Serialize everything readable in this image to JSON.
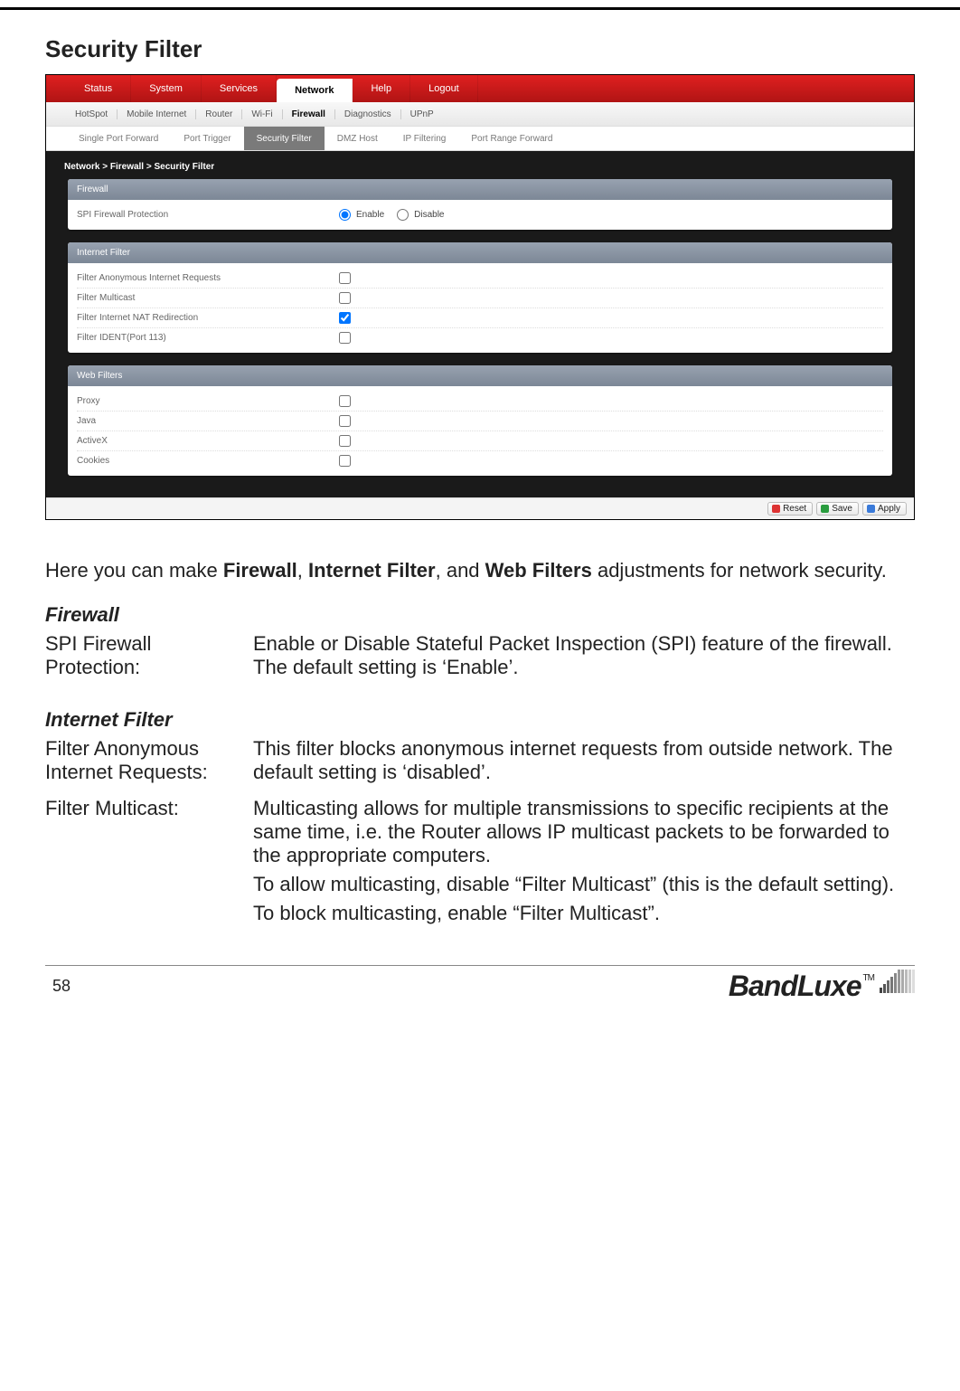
{
  "page": {
    "title": "Security Filter",
    "number": "58"
  },
  "screenshot": {
    "topnav": [
      {
        "label": "Status",
        "active": false
      },
      {
        "label": "System",
        "active": false
      },
      {
        "label": "Services",
        "active": false
      },
      {
        "label": "Network",
        "active": true
      },
      {
        "label": "Help",
        "active": false
      },
      {
        "label": "Logout",
        "active": false
      }
    ],
    "subnav": [
      {
        "label": "HotSpot",
        "active": false
      },
      {
        "label": "Mobile Internet",
        "active": false
      },
      {
        "label": "Router",
        "active": false
      },
      {
        "label": "Wi-Fi",
        "active": false
      },
      {
        "label": "Firewall",
        "active": true
      },
      {
        "label": "Diagnostics",
        "active": false
      },
      {
        "label": "UPnP",
        "active": false
      }
    ],
    "tertnav": [
      {
        "label": "Single Port Forward",
        "active": false
      },
      {
        "label": "Port Trigger",
        "active": false
      },
      {
        "label": "Security Filter",
        "active": true
      },
      {
        "label": "DMZ Host",
        "active": false
      },
      {
        "label": "IP Filtering",
        "active": false
      },
      {
        "label": "Port Range Forward",
        "active": false
      }
    ],
    "breadcrumb": "Network > Firewall > Security Filter",
    "panels": {
      "firewall": {
        "title": "Firewall",
        "row_label": "SPI Firewall Protection",
        "enable_label": "Enable",
        "disable_label": "Disable",
        "selected": "enable"
      },
      "internet_filter": {
        "title": "Internet Filter",
        "rows": [
          {
            "label": "Filter Anonymous Internet Requests",
            "checked": false
          },
          {
            "label": "Filter Multicast",
            "checked": false
          },
          {
            "label": "Filter Internet NAT Redirection",
            "checked": true
          },
          {
            "label": "Filter IDENT(Port 113)",
            "checked": false
          }
        ]
      },
      "web_filters": {
        "title": "Web Filters",
        "rows": [
          {
            "label": "Proxy",
            "checked": false
          },
          {
            "label": "Java",
            "checked": false
          },
          {
            "label": "ActiveX",
            "checked": false
          },
          {
            "label": "Cookies",
            "checked": false
          }
        ]
      }
    },
    "buttons": {
      "reset": "Reset",
      "save": "Save",
      "apply": "Apply"
    }
  },
  "doc": {
    "intro_pre": "Here you can make ",
    "intro_b1": "Firewall",
    "intro_mid1": ", ",
    "intro_b2": "Internet Filter",
    "intro_mid2": ", and ",
    "intro_b3": "Web Filters",
    "intro_post": " adjustments for network security.",
    "firewall_heading": "Firewall",
    "firewall_term": "SPI Firewall Protection:",
    "firewall_desc": "Enable or Disable Stateful Packet Inspection (SPI) feature of the firewall. The default setting is ‘Enable’.",
    "if_heading": "Internet Filter",
    "if_term1": "Filter Anonymous Internet Requests:",
    "if_desc1": "This filter blocks anonymous internet requests from outside network. The default setting is ‘disabled’.",
    "if_term2": "Filter Multicast:",
    "if_desc2a": "Multicasting allows for multiple transmissions to specific recipients at the same time, i.e. the Router allows IP multicast packets to be forwarded to the appropriate computers.",
    "if_desc2b": "To allow multicasting, disable “Filter Multicast” (this is the default setting).",
    "if_desc2c": "To block multicasting, enable “Filter Multicast”."
  },
  "brand": {
    "text": "BandLuxe",
    "tm": "TM"
  }
}
